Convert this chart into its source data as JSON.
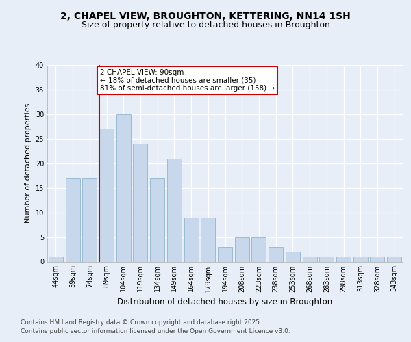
{
  "title1": "2, CHAPEL VIEW, BROUGHTON, KETTERING, NN14 1SH",
  "title2": "Size of property relative to detached houses in Broughton",
  "xlabel": "Distribution of detached houses by size in Broughton",
  "ylabel": "Number of detached properties",
  "categories": [
    "44sqm",
    "59sqm",
    "74sqm",
    "89sqm",
    "104sqm",
    "119sqm",
    "134sqm",
    "149sqm",
    "164sqm",
    "179sqm",
    "194sqm",
    "208sqm",
    "223sqm",
    "238sqm",
    "253sqm",
    "268sqm",
    "283sqm",
    "298sqm",
    "313sqm",
    "328sqm",
    "343sqm"
  ],
  "values": [
    1,
    17,
    17,
    27,
    30,
    24,
    17,
    21,
    9,
    9,
    3,
    5,
    5,
    3,
    2,
    1,
    1,
    1,
    1,
    1,
    1
  ],
  "bar_color": "#c8d8ec",
  "bar_edge_color": "#9bbbd4",
  "red_line_index": 3,
  "red_line_label": "2 CHAPEL VIEW: 90sqm",
  "annotation_line2": "← 18% of detached houses are smaller (35)",
  "annotation_line3": "81% of semi-detached houses are larger (158) →",
  "annotation_box_color": "#ffffff",
  "annotation_box_edge": "#cc0000",
  "red_line_color": "#cc0000",
  "footer1": "Contains HM Land Registry data © Crown copyright and database right 2025.",
  "footer2": "Contains public sector information licensed under the Open Government Licence v3.0.",
  "bg_color": "#e8eef8",
  "plot_bg_color": "#e8eef8",
  "ylim": [
    0,
    40
  ],
  "yticks": [
    0,
    5,
    10,
    15,
    20,
    25,
    30,
    35,
    40
  ],
  "title1_fontsize": 10,
  "title2_fontsize": 9,
  "xlabel_fontsize": 8.5,
  "ylabel_fontsize": 8,
  "tick_fontsize": 7,
  "footer_fontsize": 6.5,
  "annotation_fontsize": 7.5
}
